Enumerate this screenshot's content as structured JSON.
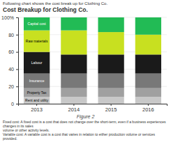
{
  "chart_data": {
    "type": "bar",
    "stacked": true,
    "title": "Cost Breakup for Clothing Co.",
    "subtitle": "Following chart shows the cost break up for Clothing Co.",
    "categories": [
      "2013",
      "2014",
      "2015",
      "2016"
    ],
    "series": [
      {
        "name": "Rent and utility",
        "color": "#c8c8c8",
        "values": [
          8,
          8,
          8,
          8
        ]
      },
      {
        "name": "Property Tax",
        "color": "#a0a0a0",
        "values": [
          10,
          10,
          10,
          10
        ]
      },
      {
        "name": "Insurance",
        "color": "#787878",
        "values": [
          17,
          17,
          17,
          17
        ]
      },
      {
        "name": "Labour",
        "color": "#1a1a1a",
        "values": [
          25,
          22,
          22,
          22
        ]
      },
      {
        "name": "Raw materials",
        "color": "#c8e020",
        "values": [
          25,
          28,
          26,
          23
        ]
      },
      {
        "name": "Capital cost",
        "color": "#22bb55",
        "values": [
          15,
          15,
          17,
          20
        ]
      }
    ],
    "ylim": [
      0,
      100
    ],
    "yticks": [
      0,
      20,
      40,
      60,
      80,
      {
        "value": 100,
        "label": "100%"
      }
    ],
    "grid": true,
    "annotations": [
      "Figure 2",
      "Fixed cost: A fixed cost is a cost that does not change over the short-term, even if a business experiences changes in its sales",
      "volume or other activity levels.",
      "Variable cost: A variable cost is a cost that varies in relation to either production volume or services provided."
    ]
  }
}
